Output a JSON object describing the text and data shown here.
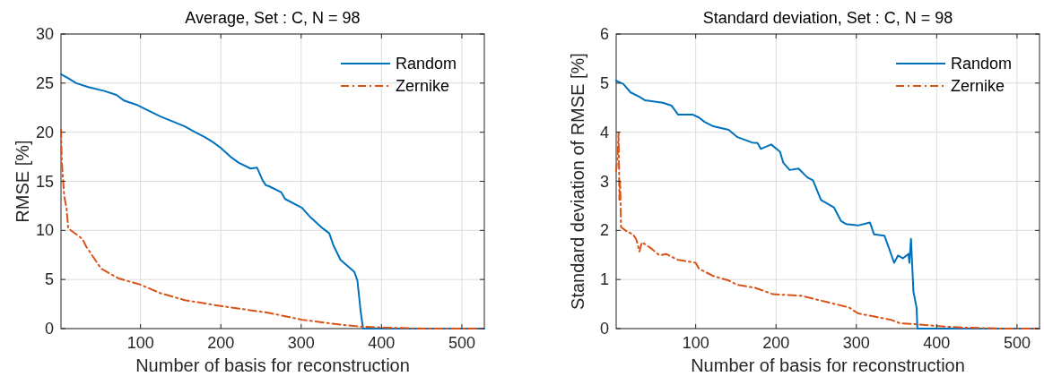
{
  "chart_data": [
    {
      "type": "line",
      "title": "Average, Set : C, N = 98",
      "xlabel": "Number of basis for reconstruction",
      "ylabel": "RMSE [%]",
      "xlim": [
        1,
        528
      ],
      "xticks": [
        100,
        200,
        300,
        400,
        500
      ],
      "ylim": [
        0,
        30
      ],
      "yticks": [
        0,
        5,
        10,
        15,
        20,
        25,
        30
      ],
      "grid": true,
      "legend": "top right",
      "series": [
        {
          "name": "Random",
          "color": "#0072bd",
          "line_style": "solid",
          "x": [
            1,
            10,
            20,
            35,
            55,
            70,
            80,
            95,
            110,
            125,
            140,
            155,
            168,
            180,
            190,
            200,
            212,
            222,
            237,
            245,
            252,
            256,
            260,
            275,
            280,
            301,
            312,
            327,
            335,
            340,
            349,
            366,
            370,
            374,
            377,
            450,
            528
          ],
          "values": [
            25.9,
            25.5,
            25,
            24.6,
            24.2,
            23.8,
            23.2,
            22.8,
            22.2,
            21.6,
            21.1,
            20.6,
            20,
            19.5,
            19,
            18.4,
            17.5,
            16.9,
            16.3,
            16.4,
            15.1,
            14.6,
            14.5,
            13.9,
            13.2,
            12.3,
            11.3,
            10.2,
            9.7,
            8.5,
            7,
            5.8,
            4.9,
            1.8,
            0,
            0,
            0
          ]
        },
        {
          "name": "Zernike",
          "color": "#d95319",
          "line_style": "dashed",
          "x": [
            1,
            2,
            5,
            8,
            10,
            20,
            28,
            32,
            51,
            73,
            99,
            125,
            155,
            200,
            260,
            301,
            349,
            375,
            404,
            450,
            528
          ],
          "values": [
            20.3,
            17,
            13.5,
            12.2,
            10.2,
            9.6,
            9.1,
            8.4,
            6.1,
            5.1,
            4.5,
            3.6,
            2.9,
            2.3,
            1.6,
            0.9,
            0.4,
            0.2,
            0.1,
            0,
            0
          ]
        }
      ]
    },
    {
      "type": "line",
      "title": "Standard deviation, Set : C, N = 98",
      "xlabel": "Number of basis for reconstruction",
      "ylabel": "Standard deviation of RMSE [%]",
      "xlim": [
        1,
        528
      ],
      "xticks": [
        100,
        200,
        300,
        400,
        500
      ],
      "ylim": [
        0,
        6
      ],
      "yticks": [
        0,
        1,
        2,
        3,
        4,
        5,
        6
      ],
      "grid": true,
      "legend": "top right",
      "series": [
        {
          "name": "Random",
          "color": "#0072bd",
          "line_style": "solid",
          "x": [
            1,
            10,
            19,
            30,
            37,
            59,
            70,
            78,
            96,
            104,
            111,
            122,
            141,
            152,
            170,
            177,
            181,
            194,
            205,
            209,
            217,
            228,
            239,
            246,
            256,
            272,
            281,
            287,
            302,
            317,
            322,
            335,
            341,
            347,
            352,
            358,
            365,
            366,
            368,
            371,
            375,
            376,
            450,
            528
          ],
          "values": [
            5.05,
            4.98,
            4.81,
            4.72,
            4.65,
            4.6,
            4.54,
            4.36,
            4.36,
            4.3,
            4.21,
            4.12,
            4.05,
            3.9,
            3.79,
            3.78,
            3.66,
            3.75,
            3.6,
            3.38,
            3.23,
            3.26,
            3.08,
            3.02,
            2.62,
            2.47,
            2.19,
            2.13,
            2.1,
            2.16,
            1.92,
            1.89,
            1.62,
            1.34,
            1.49,
            1.43,
            1.52,
            1.34,
            1.83,
            0.76,
            0.42,
            0,
            0,
            0
          ]
        },
        {
          "name": "Zernike",
          "color": "#d95319",
          "line_style": "dashed",
          "x": [
            1,
            3,
            4,
            5,
            6,
            7,
            14,
            22,
            26,
            30,
            33,
            44,
            55,
            63,
            78,
            100,
            104,
            122,
            141,
            152,
            174,
            196,
            231,
            261,
            291,
            302,
            321,
            343,
            354,
            373,
            403,
            433,
            480,
            528
          ],
          "values": [
            3.2,
            3.6,
            4.0,
            2.62,
            3.0,
            2.07,
            1.98,
            1.92,
            1.82,
            1.57,
            1.76,
            1.64,
            1.49,
            1.52,
            1.4,
            1.34,
            1.22,
            1.07,
            0.98,
            0.89,
            0.83,
            0.7,
            0.67,
            0.55,
            0.43,
            0.31,
            0.25,
            0.18,
            0.11,
            0.09,
            0.05,
            0.02,
            0,
            0
          ]
        }
      ]
    }
  ]
}
